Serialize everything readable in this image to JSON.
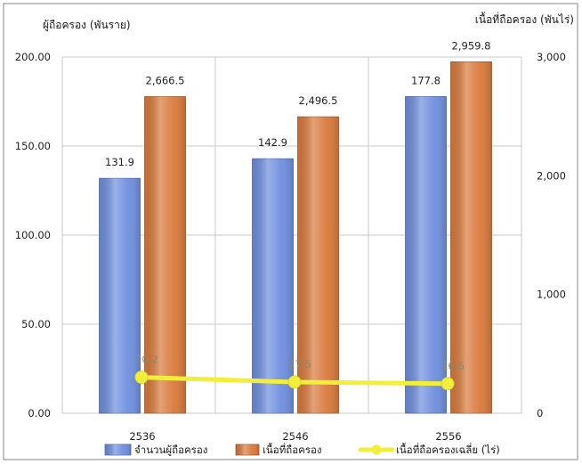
{
  "chart_data": {
    "type": "bar",
    "categories": [
      "2536",
      "2546",
      "2556"
    ],
    "series": [
      {
        "name": "จำนวนผู้ถือครอง",
        "type": "bar",
        "axis": "left",
        "values": [
          131.9,
          142.9,
          177.8
        ],
        "labels": [
          "131.9",
          "142.9",
          "177.8"
        ],
        "color": "#6f8fde"
      },
      {
        "name": "เนื้อที่ถือครอง",
        "type": "bar",
        "axis": "right",
        "values": [
          2666.5,
          2496.5,
          2959.8
        ],
        "labels": [
          "2,666.5",
          "2,496.5",
          "2,959.8"
        ],
        "color": "#d97a3c"
      },
      {
        "name": "เนื้อที่ถือครองเฉลี่ย (ไร่)",
        "type": "line",
        "axis": "left",
        "values": [
          20.2,
          17.5,
          16.6
        ],
        "labels": [
          "20.2",
          "17.5",
          "16.6"
        ],
        "color": "#f2ee3c"
      }
    ],
    "ylabel_left": "ผู้ถือครอง (พันราย)",
    "ylabel_right": "เนื้อที่ถือครอง (พันไร่)",
    "ylim_left": [
      0,
      200
    ],
    "ylim_right": [
      0,
      3000
    ],
    "yticks_left": [
      {
        "value": 0,
        "label": "0.00"
      },
      {
        "value": 50,
        "label": "50.00"
      },
      {
        "value": 100,
        "label": "100.00"
      },
      {
        "value": 150,
        "label": "150.00"
      },
      {
        "value": 200,
        "label": "200.00"
      }
    ],
    "yticks_right": [
      {
        "value": 0,
        "label": "0"
      },
      {
        "value": 1000,
        "label": "1,000"
      },
      {
        "value": 2000,
        "label": "2,000"
      },
      {
        "value": 3000,
        "label": "3,000"
      }
    ],
    "grid": true,
    "legend": "bottom"
  }
}
